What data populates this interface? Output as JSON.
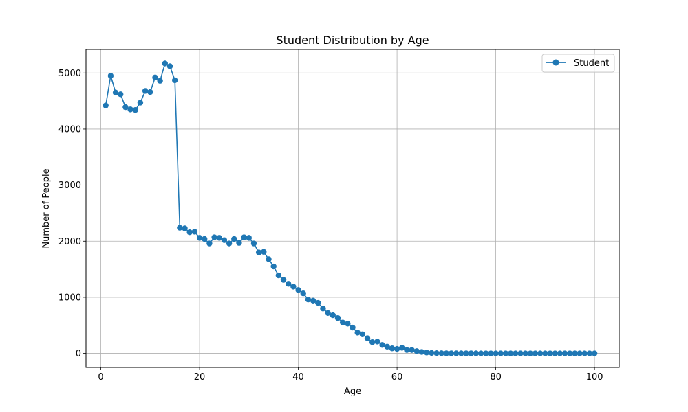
{
  "chart_data": {
    "type": "line",
    "title": "Student Distribution by Age",
    "xlabel": "Age",
    "ylabel": "Number of People",
    "xlim": [
      -3,
      105
    ],
    "ylim": [
      -250,
      5420
    ],
    "xticks": [
      0,
      20,
      40,
      60,
      80,
      100
    ],
    "yticks": [
      0,
      1000,
      2000,
      3000,
      4000,
      5000
    ],
    "grid": true,
    "legend_position": "top-right",
    "colors": {
      "series": "#1f77b4",
      "grid": "#b0b0b0"
    },
    "series": [
      {
        "name": "Student",
        "marker": "circle",
        "x": [
          1,
          2,
          3,
          4,
          5,
          6,
          7,
          8,
          9,
          10,
          11,
          12,
          13,
          14,
          15,
          16,
          17,
          18,
          19,
          20,
          21,
          22,
          23,
          24,
          25,
          26,
          27,
          28,
          29,
          30,
          31,
          32,
          33,
          34,
          35,
          36,
          37,
          38,
          39,
          40,
          41,
          42,
          43,
          44,
          45,
          46,
          47,
          48,
          49,
          50,
          51,
          52,
          53,
          54,
          55,
          56,
          57,
          58,
          59,
          60,
          61,
          62,
          63,
          64,
          65,
          66,
          67,
          68,
          69,
          70,
          71,
          72,
          73,
          74,
          75,
          76,
          77,
          78,
          79,
          80,
          81,
          82,
          83,
          84,
          85,
          86,
          87,
          88,
          89,
          90,
          91,
          92,
          93,
          94,
          95,
          96,
          97,
          98,
          99,
          100
        ],
        "y": [
          4420,
          4950,
          4650,
          4620,
          4390,
          4350,
          4340,
          4470,
          4680,
          4660,
          4920,
          4860,
          5170,
          5120,
          4870,
          2240,
          2230,
          2160,
          2170,
          2060,
          2040,
          1960,
          2070,
          2060,
          2020,
          1960,
          2040,
          1970,
          2070,
          2060,
          1960,
          1800,
          1810,
          1680,
          1550,
          1390,
          1310,
          1240,
          1190,
          1130,
          1070,
          960,
          940,
          900,
          800,
          720,
          680,
          630,
          550,
          530,
          460,
          370,
          340,
          270,
          200,
          210,
          150,
          120,
          90,
          80,
          100,
          60,
          60,
          40,
          25,
          15,
          8,
          5,
          3,
          2,
          2,
          1,
          1,
          1,
          1,
          1,
          0,
          0,
          0,
          0,
          0,
          0,
          0,
          0,
          0,
          0,
          0,
          0,
          0,
          0,
          0,
          0,
          0,
          0,
          0,
          0,
          0,
          0,
          0,
          0
        ]
      }
    ]
  }
}
